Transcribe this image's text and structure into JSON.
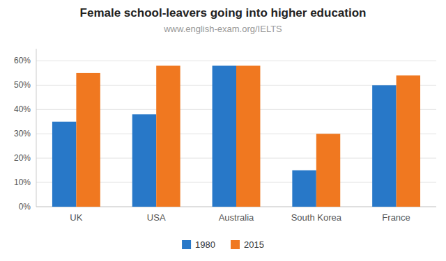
{
  "chart_data": {
    "type": "bar",
    "title": "Female school-leavers going into higher education",
    "subtitle": "www.english-exam.org/IELTS",
    "categories": [
      "UK",
      "USA",
      "Australia",
      "South Korea",
      "France"
    ],
    "series": [
      {
        "name": "1980",
        "color": "#2878c8",
        "values": [
          0.35,
          0.38,
          0.58,
          0.15,
          0.5
        ]
      },
      {
        "name": "2015",
        "color": "#f07820",
        "values": [
          0.55,
          0.58,
          0.58,
          0.3,
          0.54
        ]
      }
    ],
    "ylim": [
      0,
      0.65
    ],
    "yticks": [
      {
        "value": 0,
        "label": "0%"
      },
      {
        "value": 0.1,
        "label": "10%"
      },
      {
        "value": 0.2,
        "label": "20%"
      },
      {
        "value": 0.3,
        "label": "30%"
      },
      {
        "value": 0.4,
        "label": "40%"
      },
      {
        "value": 0.5,
        "label": "50%"
      },
      {
        "value": 0.6,
        "label": "60%"
      }
    ],
    "grid": true,
    "legend": "bottom"
  }
}
